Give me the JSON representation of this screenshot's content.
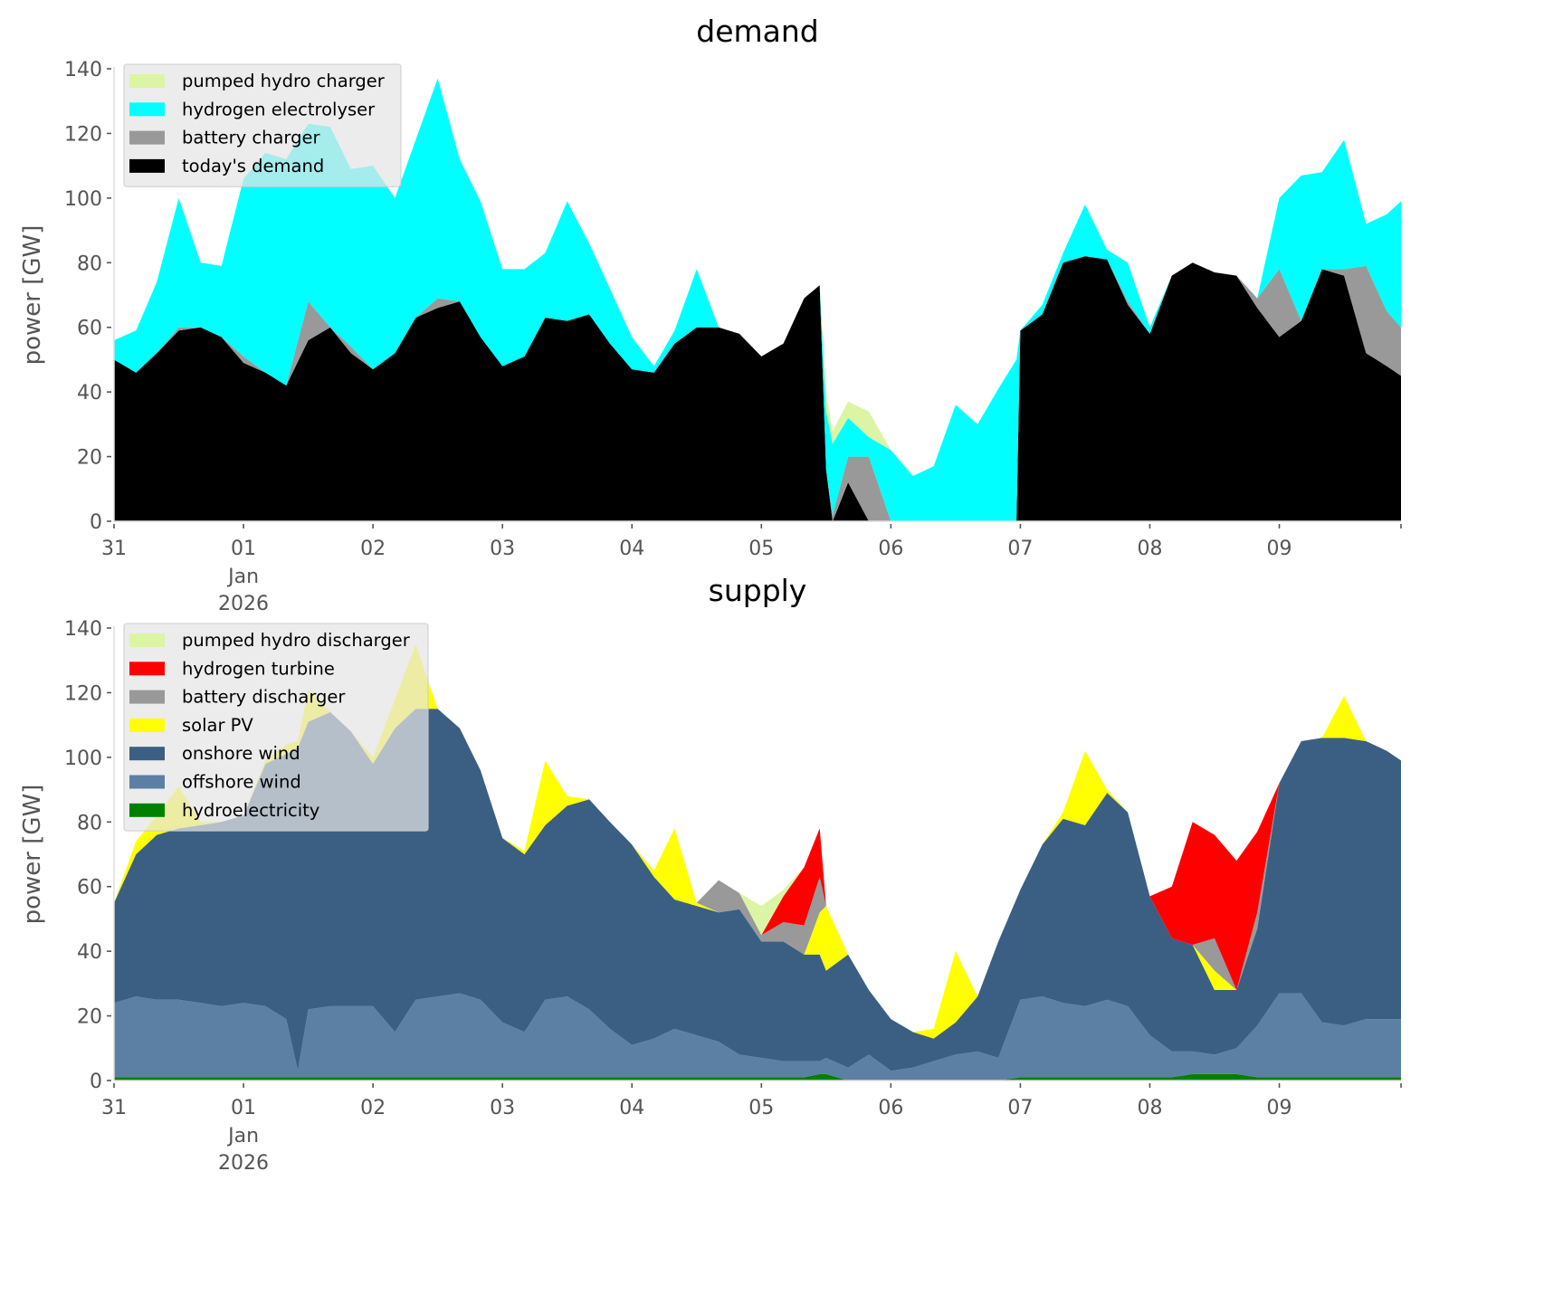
{
  "figure": {
    "background": "#ffffff"
  },
  "chart_data": [
    {
      "type": "area",
      "stacked": true,
      "title": "demand",
      "xlabel": "",
      "ylabel": "power [GW]",
      "ylim": [
        0,
        140
      ],
      "yticks": [
        0,
        20,
        40,
        60,
        80,
        100,
        120,
        140
      ],
      "xlim_days": [
        0,
        9.94
      ],
      "xticks": [
        {
          "day": 0,
          "label": "31"
        },
        {
          "day": 1,
          "label": "01",
          "sublabel1": "Jan",
          "sublabel2": "2026"
        },
        {
          "day": 2,
          "label": "02"
        },
        {
          "day": 3,
          "label": "03"
        },
        {
          "day": 4,
          "label": "04"
        },
        {
          "day": 5,
          "label": "05"
        },
        {
          "day": 6,
          "label": "06"
        },
        {
          "day": 7,
          "label": "07"
        },
        {
          "day": 8,
          "label": "08"
        },
        {
          "day": 9,
          "label": "09"
        },
        {
          "day": 9.94,
          "label": ""
        }
      ],
      "grid": false,
      "legend_position": "top-left",
      "x_unit": "days since 2025-12-31 00:00",
      "x": [
        0,
        0.17,
        0.33,
        0.5,
        0.67,
        0.83,
        1,
        1.17,
        1.33,
        1.5,
        1.67,
        1.83,
        2,
        2.17,
        2.33,
        2.5,
        2.67,
        2.83,
        3,
        3.17,
        3.33,
        3.5,
        3.67,
        3.83,
        4,
        4.17,
        4.33,
        4.5,
        4.67,
        4.83,
        5,
        5.17,
        5.33,
        5.45,
        5.5,
        5.55,
        5.67,
        5.83,
        6,
        6.17,
        6.33,
        6.5,
        6.67,
        6.83,
        6.97,
        7.0,
        7.17,
        7.33,
        7.5,
        7.67,
        7.83,
        8,
        8.17,
        8.33,
        8.5,
        8.67,
        8.83,
        9,
        9.17,
        9.33,
        9.5,
        9.67,
        9.83,
        9.94
      ],
      "series": [
        {
          "name": "today's demand",
          "color": "#000000",
          "values": [
            50,
            46,
            52,
            59,
            60,
            57,
            49,
            46,
            42,
            56,
            60,
            52,
            47,
            52,
            63,
            66,
            68,
            57,
            48,
            51,
            63,
            62,
            64,
            55,
            47,
            46,
            55,
            60,
            60,
            58,
            51,
            55,
            69,
            73,
            16,
            0,
            12,
            0,
            0,
            0,
            0,
            0,
            0,
            0,
            0,
            59,
            64,
            80,
            82,
            81,
            67,
            58,
            76,
            80,
            77,
            76,
            66,
            57,
            62,
            78,
            76,
            52,
            48,
            45
          ]
        },
        {
          "name": "battery charger",
          "color": "#999999",
          "values": [
            0,
            0,
            0,
            1,
            0,
            0,
            2,
            0,
            0,
            12,
            0,
            2,
            0,
            0,
            0,
            3,
            0,
            0,
            0,
            0,
            0,
            0,
            0,
            0,
            0,
            0,
            0,
            0,
            0,
            0,
            0,
            0,
            0,
            0,
            0,
            2,
            8,
            20,
            0,
            0,
            0,
            0,
            0,
            0,
            0,
            0,
            0,
            0,
            0,
            0,
            1,
            0,
            0,
            0,
            0,
            0,
            3,
            21,
            0,
            0,
            2,
            27,
            17,
            15
          ]
        },
        {
          "name": "hydrogen electrolyser",
          "color": "#00ffff",
          "values": [
            6,
            13,
            22,
            40,
            20,
            22,
            55,
            68,
            70,
            55,
            62,
            55,
            63,
            48,
            55,
            68,
            44,
            42,
            30,
            27,
            20,
            37,
            22,
            17,
            10,
            2,
            4,
            18,
            0,
            0,
            0,
            0,
            0,
            0,
            18,
            22,
            12,
            6,
            22,
            14,
            17,
            36,
            30,
            41,
            50,
            0,
            3,
            3,
            16,
            3,
            12,
            2,
            0,
            0,
            0,
            0,
            0,
            22,
            45,
            30,
            40,
            13,
            30,
            39
          ]
        },
        {
          "name": "pumped hydro charger",
          "color": "#dcf5a4",
          "values": [
            0,
            0,
            0,
            0,
            0,
            0,
            0,
            0,
            0,
            0,
            0,
            0,
            0,
            0,
            0,
            0,
            0,
            0,
            0,
            0,
            0,
            0,
            0,
            0,
            0,
            0,
            0,
            0,
            0,
            0,
            0,
            0,
            0,
            0,
            6,
            4,
            5,
            8,
            0,
            0,
            0,
            0,
            0,
            0,
            0,
            0,
            0,
            0,
            0,
            0,
            0,
            0,
            0,
            0,
            0,
            0,
            0,
            0,
            0,
            0,
            0,
            0,
            0,
            0
          ]
        }
      ],
      "legend": [
        "pumped hydro charger",
        "hydrogen electrolyser",
        "battery charger",
        "today's demand"
      ]
    },
    {
      "type": "area",
      "stacked": true,
      "title": "supply",
      "xlabel": "",
      "ylabel": "power [GW]",
      "ylim": [
        0,
        140
      ],
      "yticks": [
        0,
        20,
        40,
        60,
        80,
        100,
        120,
        140
      ],
      "xlim_days": [
        0,
        9.94
      ],
      "xticks": [
        {
          "day": 0,
          "label": "31"
        },
        {
          "day": 1,
          "label": "01",
          "sublabel1": "Jan",
          "sublabel2": "2026"
        },
        {
          "day": 2,
          "label": "02"
        },
        {
          "day": 3,
          "label": "03"
        },
        {
          "day": 4,
          "label": "04"
        },
        {
          "day": 5,
          "label": "05"
        },
        {
          "day": 6,
          "label": "06"
        },
        {
          "day": 7,
          "label": "07"
        },
        {
          "day": 8,
          "label": "08"
        },
        {
          "day": 9,
          "label": "09"
        },
        {
          "day": 9.94,
          "label": ""
        }
      ],
      "grid": false,
      "legend_position": "top-left",
      "x_unit": "days since 2025-12-31 00:00",
      "x": [
        0,
        0.17,
        0.33,
        0.5,
        0.67,
        0.83,
        1,
        1.17,
        1.33,
        1.42,
        1.5,
        1.67,
        1.83,
        2,
        2.17,
        2.33,
        2.5,
        2.67,
        2.83,
        3,
        3.17,
        3.33,
        3.5,
        3.67,
        3.83,
        4,
        4.17,
        4.33,
        4.5,
        4.67,
        4.83,
        5,
        5.17,
        5.33,
        5.45,
        5.5,
        5.67,
        5.83,
        6,
        6.17,
        6.33,
        6.5,
        6.67,
        6.83,
        7,
        7.17,
        7.33,
        7.5,
        7.67,
        7.83,
        8,
        8.17,
        8.33,
        8.5,
        8.67,
        8.83,
        9,
        9.17,
        9.33,
        9.5,
        9.67,
        9.83,
        9.94
      ],
      "series": [
        {
          "name": "hydroelectricity",
          "color": "#008000",
          "values": [
            1,
            1,
            1,
            1,
            1,
            1,
            1,
            1,
            1,
            1,
            1,
            1,
            1,
            1,
            1,
            1,
            1,
            1,
            1,
            1,
            1,
            1,
            1,
            1,
            1,
            1,
            1,
            1,
            1,
            1,
            1,
            1,
            1,
            1,
            2,
            2,
            0,
            0,
            0,
            0,
            0,
            0,
            0,
            0,
            1,
            1,
            1,
            1,
            1,
            1,
            1,
            1,
            2,
            2,
            2,
            1,
            1,
            1,
            1,
            1,
            1,
            1,
            1
          ]
        },
        {
          "name": "offshore wind",
          "color": "#5b80a3",
          "values": [
            23,
            25,
            24,
            24,
            23,
            22,
            23,
            22,
            18,
            2,
            21,
            22,
            22,
            22,
            14,
            24,
            25,
            26,
            24,
            17,
            14,
            24,
            25,
            21,
            15,
            10,
            12,
            15,
            13,
            11,
            7,
            6,
            5,
            5,
            4,
            5,
            4,
            8,
            3,
            4,
            6,
            8,
            9,
            7,
            24,
            25,
            23,
            22,
            24,
            22,
            13,
            8,
            7,
            6,
            8,
            16,
            26,
            26,
            17,
            16,
            18,
            18,
            18
          ]
        },
        {
          "name": "onshore wind",
          "color": "#3b5f82",
          "values": [
            31,
            44,
            51,
            53,
            55,
            57,
            58,
            75,
            82,
            100,
            89,
            91,
            85,
            75,
            94,
            90,
            89,
            82,
            71,
            57,
            55,
            54,
            59,
            65,
            64,
            62,
            50,
            40,
            40,
            40,
            45,
            36,
            37,
            33,
            33,
            27,
            35,
            20,
            16,
            11,
            7,
            10,
            17,
            36,
            34,
            47,
            57,
            56,
            64,
            60,
            43,
            35,
            33,
            20,
            18,
            30,
            65,
            78,
            88,
            89,
            86,
            83,
            80
          ]
        },
        {
          "name": "solar PV",
          "color": "#ffff00",
          "values": [
            0,
            4,
            6,
            13,
            1,
            0,
            0,
            1,
            3,
            2,
            10,
            0,
            0,
            2,
            9,
            20,
            0,
            0,
            0,
            0,
            1,
            20,
            3,
            0,
            0,
            0,
            2,
            22,
            1,
            0,
            0,
            0,
            0,
            0,
            13,
            20,
            0,
            0,
            0,
            0,
            3,
            22,
            0,
            0,
            0,
            0,
            2,
            23,
            1,
            0,
            0,
            0,
            0,
            6,
            0,
            0,
            0,
            0,
            0,
            13,
            0,
            0,
            0
          ]
        },
        {
          "name": "battery discharger",
          "color": "#999999",
          "values": [
            0,
            0,
            0,
            0,
            0,
            0,
            0,
            0,
            0,
            0,
            0,
            0,
            0,
            0,
            0,
            0,
            0,
            0,
            0,
            0,
            0,
            0,
            0,
            0,
            0,
            0,
            0,
            0,
            0,
            10,
            5,
            2,
            6,
            9,
            11,
            0,
            0,
            0,
            0,
            0,
            0,
            0,
            0,
            0,
            0,
            0,
            0,
            0,
            0,
            0,
            0,
            0,
            0,
            10,
            0,
            5,
            0,
            0,
            0,
            0,
            0,
            0,
            0
          ]
        },
        {
          "name": "hydrogen turbine",
          "color": "#ff0000",
          "values": [
            0,
            0,
            0,
            0,
            0,
            0,
            0,
            0,
            0,
            0,
            0,
            0,
            0,
            0,
            0,
            0,
            0,
            0,
            0,
            0,
            0,
            0,
            0,
            0,
            0,
            0,
            0,
            0,
            0,
            0,
            0,
            0,
            8,
            18,
            15,
            0,
            0,
            0,
            0,
            0,
            0,
            0,
            0,
            0,
            0,
            0,
            0,
            0,
            0,
            0,
            0,
            16,
            38,
            32,
            40,
            25,
            0,
            0,
            0,
            0,
            0,
            0,
            0
          ]
        },
        {
          "name": "pumped hydro discharger",
          "color": "#dcf5a4",
          "values": [
            0,
            0,
            0,
            0,
            0,
            0,
            0,
            0,
            0,
            0,
            0,
            0,
            0,
            0,
            0,
            0,
            0,
            0,
            0,
            0,
            0,
            0,
            0,
            0,
            0,
            0,
            0,
            0,
            0,
            0,
            0,
            9,
            2,
            0,
            0,
            0,
            0,
            0,
            0,
            0,
            0,
            0,
            0,
            0,
            0,
            0,
            0,
            0,
            0,
            0,
            0,
            0,
            0,
            0,
            0,
            0,
            0,
            0,
            0,
            0,
            0,
            0,
            0
          ]
        }
      ],
      "legend": [
        "pumped hydro discharger",
        "hydrogen turbine",
        "battery discharger",
        "solar PV",
        "onshore wind",
        "offshore wind",
        "hydroelectricity"
      ]
    }
  ]
}
